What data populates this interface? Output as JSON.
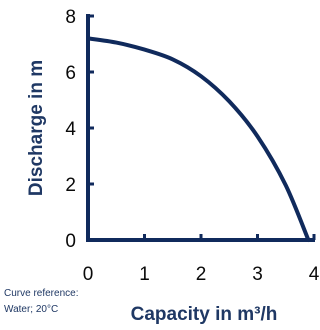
{
  "chart_data": {
    "type": "line",
    "xlabel": "Capacity in m³/h",
    "ylabel": "Discharge in m",
    "xlim": [
      0,
      4
    ],
    "ylim": [
      0,
      8
    ],
    "xticks": [
      "0",
      "1",
      "2",
      "3",
      "4"
    ],
    "yticks": [
      "0",
      "2",
      "4",
      "6",
      "8"
    ],
    "grid": false,
    "series": [
      {
        "x": [
          0,
          0.5,
          1.0,
          1.5,
          2.0,
          2.5,
          3.0,
          3.5,
          3.9
        ],
        "y": [
          7.2,
          7.05,
          6.8,
          6.45,
          5.85,
          4.95,
          3.7,
          1.95,
          0.0
        ],
        "color": "#102a5c"
      }
    ],
    "annotation": {
      "line1": "Curve reference:",
      "line2": "Water; 20°C"
    }
  }
}
